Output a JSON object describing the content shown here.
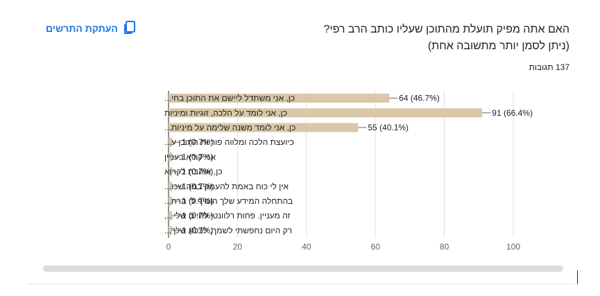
{
  "question": {
    "title_line1": "האם אתה מפיק תועלת מהתוכן שעליו כותב הרב רפי?",
    "title_line2": "(ניתן לסמן יותר מתשובה אחת)",
    "responses": "137 תגובות"
  },
  "copy_button": {
    "label": "העתקת התרשים",
    "icon": "copy-icon"
  },
  "colors": {
    "bar": "#d9c8a8",
    "bar_edge": "#c8b48e",
    "grid": "#e0e0e0",
    "axis": "#202124",
    "accent": "#1a73e8"
  },
  "chart_data": {
    "type": "bar",
    "orientation": "horizontal",
    "categories": [
      "כן, אני משתדל ליישם את התוכן בחי...",
      "כן, אני לומד על הלכה, זוגיות ומיניות",
      "כן, אני לומד משנה שלימה על מיניות...",
      "כיועצת הלכה ומלווה פוריות התוכן ע...",
      "אני קורא בעניין",
      "כן, אוהבת לקרוא",
      "אין לי כוח באמת להעמק במה שכו...",
      "בהתחלה המידע שלך הוסיף לי הרח...",
      "זה מעניין. פחות רלוונטי לחיים שלי...,",
      "רק היום נחפשתי לשמך, לבלוג שלך..."
    ],
    "values": [
      64,
      91,
      55,
      1,
      1,
      1,
      1,
      1,
      1,
      1
    ],
    "data_labels": [
      "64 (46.7%)",
      "91 (66.4%)",
      "55 (40.1%)",
      "1 (0.7%)",
      "1 (0.7%)",
      "1 (0.7%)",
      "1 (0.7%)",
      "1 (0.7%)",
      "1 (0.7%)",
      "1 (0.7%)"
    ],
    "xlim": [
      0,
      100
    ],
    "xticks": [
      "0",
      "20",
      "40",
      "60",
      "80",
      "100"
    ],
    "grid": true
  }
}
